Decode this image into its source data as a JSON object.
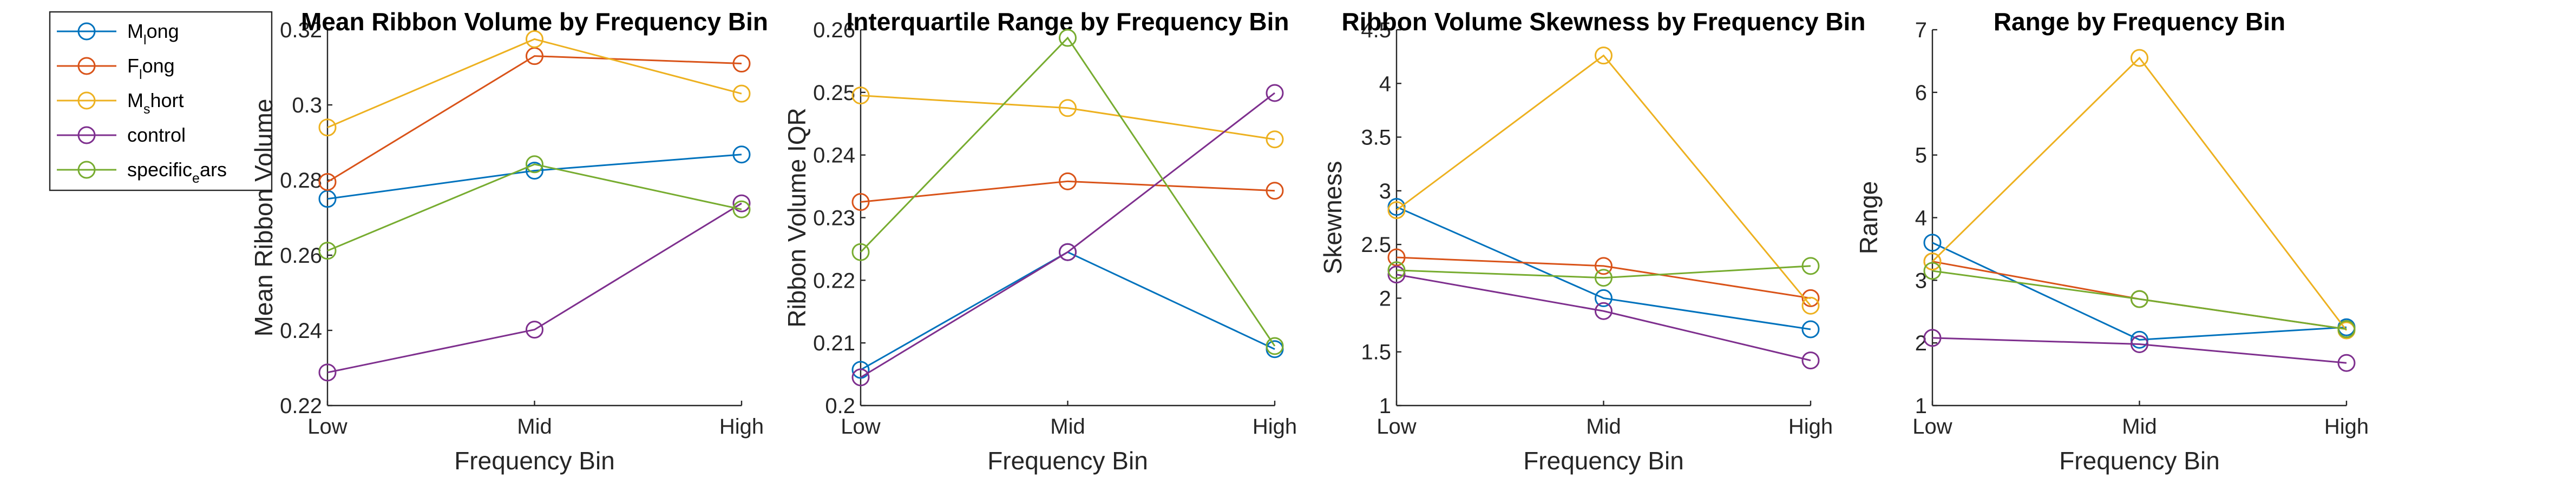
{
  "colors": {
    "axis": "#262626",
    "series": [
      "#0072BD",
      "#D95319",
      "#EDB120",
      "#7E2F8E",
      "#77AC30"
    ]
  },
  "legend": {
    "placement": "outside-left-top",
    "entries": [
      {
        "main": "M",
        "sub": "l",
        "rest": "ong"
      },
      {
        "main": "F",
        "sub": "l",
        "rest": "ong"
      },
      {
        "main": "M",
        "sub": "s",
        "rest": "hort"
      },
      {
        "main": "control",
        "sub": "",
        "rest": ""
      },
      {
        "main": "specific",
        "sub": "e",
        "rest": "ars"
      }
    ]
  },
  "chart_data": [
    {
      "type": "line",
      "title": "Mean Ribbon Volume by Frequency Bin",
      "xlabel": "Frequency Bin",
      "ylabel": "Mean Ribbon Volume",
      "categories": [
        "Low",
        "Mid",
        "High"
      ],
      "ylim": [
        0.22,
        0.32
      ],
      "yticks": [
        0.22,
        0.24,
        0.26,
        0.28,
        0.3,
        0.32
      ],
      "ytick_labels": [
        "0.22",
        "0.24",
        "0.26",
        "0.28",
        "0.3",
        "0.32"
      ],
      "series": [
        {
          "name": "M_long",
          "values": [
            0.275,
            0.2825,
            0.2868
          ]
        },
        {
          "name": "F_long",
          "values": [
            0.2795,
            0.313,
            0.311
          ]
        },
        {
          "name": "M_short",
          "values": [
            0.294,
            0.3175,
            0.303
          ]
        },
        {
          "name": "control",
          "values": [
            0.2288,
            0.2402,
            0.2738
          ]
        },
        {
          "name": "specific_ears",
          "values": [
            0.2612,
            0.2842,
            0.2722
          ]
        }
      ]
    },
    {
      "type": "line",
      "title": "Interquartile Range by Frequency Bin",
      "xlabel": "Frequency Bin",
      "ylabel": "Ribbon Volume IQR",
      "categories": [
        "Low",
        "Mid",
        "High"
      ],
      "ylim": [
        0.2,
        0.26
      ],
      "yticks": [
        0.2,
        0.21,
        0.22,
        0.23,
        0.24,
        0.25,
        0.26
      ],
      "ytick_labels": [
        "0.2",
        "0.21",
        "0.22",
        "0.23",
        "0.24",
        "0.25",
        "0.26"
      ],
      "series": [
        {
          "name": "M_long",
          "values": [
            0.2057,
            0.2245,
            0.209
          ]
        },
        {
          "name": "F_long",
          "values": [
            0.2325,
            0.2358,
            0.2343
          ]
        },
        {
          "name": "M_short",
          "values": [
            0.2495,
            0.2475,
            0.2425
          ]
        },
        {
          "name": "control",
          "values": [
            0.2045,
            0.2245,
            0.2499
          ]
        },
        {
          "name": "specific_ears",
          "values": [
            0.2245,
            0.2587,
            0.2095
          ]
        }
      ]
    },
    {
      "type": "line",
      "title": "Ribbon Volume Skewness by Frequency Bin",
      "xlabel": "Frequency Bin",
      "ylabel": "Skewness",
      "categories": [
        "Low",
        "Mid",
        "High"
      ],
      "ylim": [
        1,
        4.5
      ],
      "yticks": [
        1,
        1.5,
        2,
        2.5,
        3,
        3.5,
        4,
        4.5
      ],
      "ytick_labels": [
        "1",
        "1.5",
        "2",
        "2.5",
        "3",
        "3.5",
        "4",
        "4.5"
      ],
      "series": [
        {
          "name": "M_long",
          "values": [
            2.85,
            2.0,
            1.71
          ]
        },
        {
          "name": "F_long",
          "values": [
            2.38,
            2.3,
            2.0
          ]
        },
        {
          "name": "M_short",
          "values": [
            2.82,
            4.26,
            1.93
          ]
        },
        {
          "name": "control",
          "values": [
            2.22,
            1.88,
            1.42
          ]
        },
        {
          "name": "specific_ears",
          "values": [
            2.26,
            2.19,
            2.3
          ]
        }
      ]
    },
    {
      "type": "line",
      "title": "Range by Frequency Bin",
      "xlabel": "Frequency Bin",
      "ylabel": "Range",
      "categories": [
        "Low",
        "Mid",
        "High"
      ],
      "ylim": [
        1,
        7
      ],
      "yticks": [
        1,
        2,
        3,
        4,
        5,
        6,
        7
      ],
      "ytick_labels": [
        "1",
        "2",
        "3",
        "4",
        "5",
        "6",
        "7"
      ],
      "series": [
        {
          "name": "M_long",
          "values": [
            3.6,
            2.05,
            2.25
          ]
        },
        {
          "name": "F_long",
          "values": [
            3.3,
            2.7,
            2.22
          ]
        },
        {
          "name": "M_short",
          "values": [
            3.3,
            6.55,
            2.2
          ]
        },
        {
          "name": "control",
          "values": [
            2.08,
            1.98,
            1.68
          ]
        },
        {
          "name": "specific_ears",
          "values": [
            3.15,
            2.7,
            2.22
          ]
        }
      ]
    }
  ]
}
